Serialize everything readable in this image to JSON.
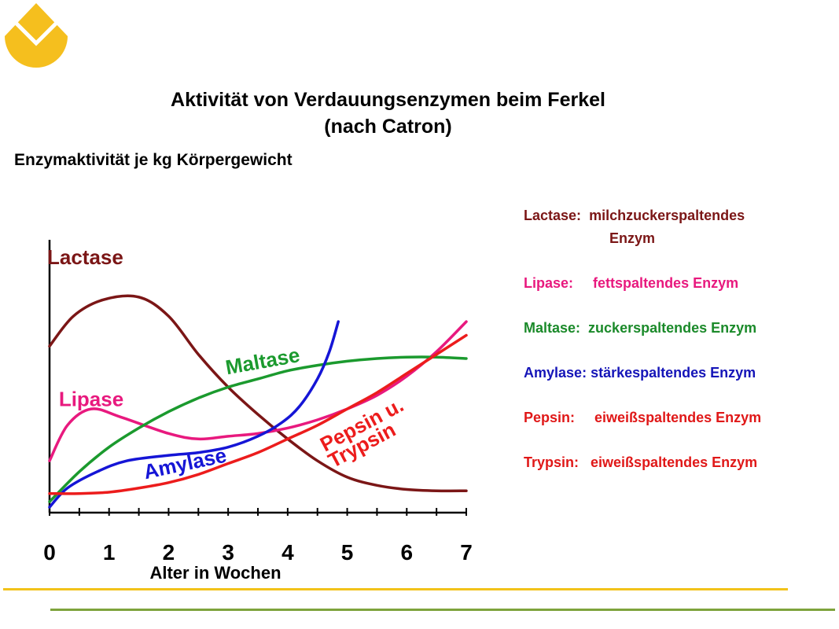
{
  "title_line1": "Aktivität von Verdauungsenzymen beim Ferkel",
  "title_line2": "(nach Catron)",
  "chart_data": {
    "type": "line",
    "ylabel": "Enzymaktivität je kg Körpergewicht",
    "xlabel": "Alter in Wochen",
    "xlim": [
      0,
      7
    ],
    "x_ticks": [
      "0",
      "1",
      "2",
      "3",
      "4",
      "5",
      "6",
      "7"
    ],
    "y_ticks": [],
    "grid": false,
    "series": [
      {
        "name": "Lactase",
        "color": "#7b1616",
        "points": [
          [
            0,
            6.1
          ],
          [
            0.4,
            7.2
          ],
          [
            0.9,
            7.8
          ],
          [
            1.5,
            7.9
          ],
          [
            2.0,
            7.2
          ],
          [
            2.5,
            5.8
          ],
          [
            3.0,
            4.6
          ],
          [
            3.5,
            3.6
          ],
          [
            4.0,
            2.7
          ],
          [
            4.5,
            1.9
          ],
          [
            5.0,
            1.3
          ],
          [
            5.5,
            1.0
          ],
          [
            6.0,
            0.85
          ],
          [
            6.5,
            0.8
          ],
          [
            7.0,
            0.8
          ]
        ]
      },
      {
        "name": "Lipase",
        "color": "#e8197e",
        "points": [
          [
            0,
            1.9
          ],
          [
            0.3,
            3.2
          ],
          [
            0.7,
            3.8
          ],
          [
            1.2,
            3.5
          ],
          [
            2.0,
            2.9
          ],
          [
            2.5,
            2.7
          ],
          [
            3.0,
            2.8
          ],
          [
            3.5,
            2.9
          ],
          [
            4.0,
            3.1
          ],
          [
            4.5,
            3.4
          ],
          [
            5.0,
            3.8
          ],
          [
            5.5,
            4.3
          ],
          [
            6.0,
            5.0
          ],
          [
            6.5,
            5.9
          ],
          [
            7.0,
            7.0
          ]
        ]
      },
      {
        "name": "Maltase",
        "color": "#1b9a2e",
        "points": [
          [
            0,
            0.4
          ],
          [
            0.5,
            1.5
          ],
          [
            1.0,
            2.4
          ],
          [
            1.5,
            3.1
          ],
          [
            2.0,
            3.7
          ],
          [
            2.5,
            4.2
          ],
          [
            3.0,
            4.6
          ],
          [
            3.5,
            4.9
          ],
          [
            4.0,
            5.2
          ],
          [
            4.5,
            5.4
          ],
          [
            5.0,
            5.55
          ],
          [
            5.5,
            5.65
          ],
          [
            6.0,
            5.7
          ],
          [
            6.5,
            5.7
          ],
          [
            7.0,
            5.65
          ]
        ]
      },
      {
        "name": "Amylase",
        "color": "#1515d6",
        "points": [
          [
            0,
            0.2
          ],
          [
            0.3,
            0.9
          ],
          [
            0.8,
            1.5
          ],
          [
            1.3,
            1.9
          ],
          [
            2.0,
            2.1
          ],
          [
            2.5,
            2.2
          ],
          [
            3.0,
            2.4
          ],
          [
            3.5,
            2.8
          ],
          [
            3.9,
            3.3
          ],
          [
            4.2,
            3.9
          ],
          [
            4.5,
            4.9
          ],
          [
            4.7,
            5.9
          ],
          [
            4.85,
            7.0
          ]
        ]
      },
      {
        "name": "Pepsin u. Trypsin",
        "color": "#ec1c1c",
        "points": [
          [
            0,
            0.7
          ],
          [
            0.5,
            0.7
          ],
          [
            1.0,
            0.75
          ],
          [
            1.5,
            0.9
          ],
          [
            2.0,
            1.1
          ],
          [
            2.5,
            1.4
          ],
          [
            3.0,
            1.8
          ],
          [
            3.5,
            2.2
          ],
          [
            4.0,
            2.7
          ],
          [
            4.5,
            3.2
          ],
          [
            5.0,
            3.8
          ],
          [
            5.5,
            4.4
          ],
          [
            6.0,
            5.1
          ],
          [
            6.5,
            5.8
          ],
          [
            7.0,
            6.5
          ]
        ]
      }
    ],
    "curve_labels": [
      {
        "text": "Lactase",
        "color": "#7b1616",
        "x": 0.6,
        "y": 9.1,
        "rotate": 0
      },
      {
        "text": "Lipase",
        "color": "#e8197e",
        "x": 0.7,
        "y": 3.9,
        "rotate": 0
      },
      {
        "text": "Maltase",
        "color": "#1b9a2e",
        "x": 3.6,
        "y": 5.3,
        "rotate": -10
      },
      {
        "text": "Amylase",
        "color": "#1515d6",
        "x": 2.3,
        "y": 1.55,
        "rotate": -12
      },
      {
        "text": "Pepsin u.",
        "color": "#ec1c1c",
        "x": 5.3,
        "y": 3.0,
        "rotate": -28
      },
      {
        "text": "Trypsin",
        "color": "#ec1c1c",
        "x": 5.3,
        "y": 2.25,
        "rotate": -28
      }
    ]
  },
  "legend": [
    {
      "name": "Lactase:",
      "desc": "  milchzuckerspaltendes",
      "desc2": "Enzym",
      "color": "#7b1616"
    },
    {
      "name": "Lipase:",
      "desc": "     fettspaltendes Enzym",
      "color": "#e8197e"
    },
    {
      "name": "Maltase:",
      "desc": "  zuckerspaltendes Enzym",
      "color": "#1b8a2a"
    },
    {
      "name": "Amylase:",
      "desc": " stärkespaltendes Enzym",
      "color": "#1515b8"
    },
    {
      "name": "Pepsin:",
      "desc": "     eiweißspaltendes Enzym",
      "color": "#e01818"
    },
    {
      "name": "Trypsin:",
      "desc": "   eiweißspaltendes Enzym",
      "color": "#e01818"
    }
  ],
  "colors": {
    "logo": "#f5bf1e",
    "rule_yellow": "#f2c21a",
    "rule_green": "#7ea33c"
  }
}
